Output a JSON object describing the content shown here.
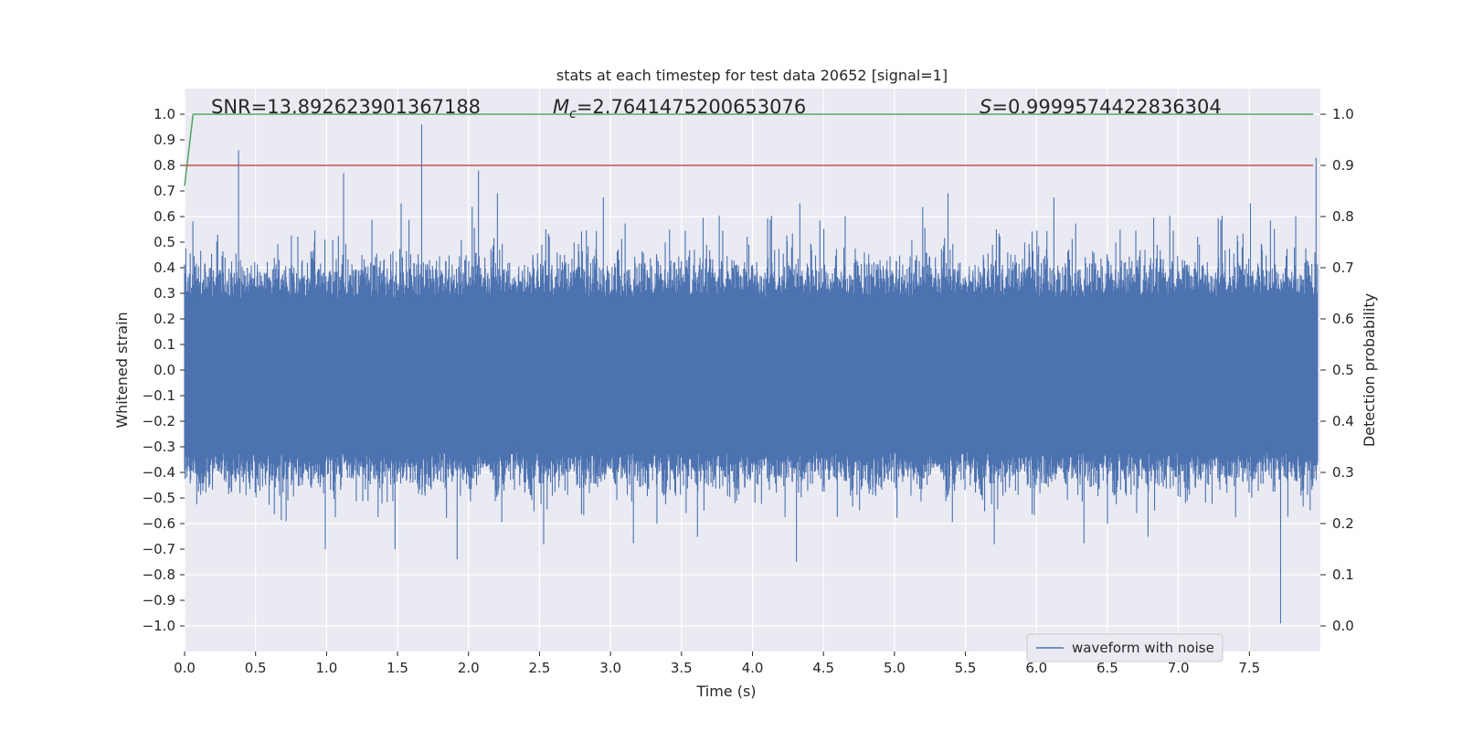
{
  "chart_data": {
    "type": "line",
    "title": "stats at each timestep for test data 20652 [signal=1]",
    "xlabel": "Time (s)",
    "ylabel": "Whitened strain",
    "ylabel_right": "Detection probability",
    "xlim": [
      0.0,
      8.0
    ],
    "ylim": [
      -1.1,
      1.1
    ],
    "ylim_right": [
      -0.05,
      1.05
    ],
    "x_ticks": [
      "0.0",
      "0.5",
      "1.0",
      "1.5",
      "2.0",
      "2.5",
      "3.0",
      "3.5",
      "4.0",
      "4.5",
      "5.0",
      "5.5",
      "6.0",
      "6.5",
      "7.0",
      "7.5"
    ],
    "y_ticks": [
      "1.0",
      "0.9",
      "0.8",
      "0.7",
      "0.6",
      "0.5",
      "0.4",
      "0.3",
      "0.2",
      "0.1",
      "0.0",
      "−0.1",
      "−0.2",
      "−0.3",
      "−0.4",
      "−0.5",
      "−0.6",
      "−0.7",
      "−0.8",
      "−0.9",
      "−1.0"
    ],
    "y_right_ticks": [
      "1.0",
      "0.9",
      "0.8",
      "0.7",
      "0.6",
      "0.5",
      "0.4",
      "0.3",
      "0.2",
      "0.1",
      "0.0"
    ],
    "grid": true,
    "legend_position": "lower-right",
    "annotations": {
      "snr": "SNR=13.892623901367188",
      "mc_symbol": "M",
      "mc_subscript": "c",
      "mc_value": "=2.7641475200653076",
      "s_symbol": "S",
      "s_value": "=0.9999574422836304"
    },
    "series": [
      {
        "name": "waveform with noise",
        "axis": "left",
        "color": "#4c72b0",
        "style": "noise trace spanning roughly ±0.5, peaks near ±0.9",
        "x_range": [
          0.0,
          7.98
        ],
        "envelope": [
          0.62,
          -0.45
        ],
        "notable_peaks": [
          {
            "x": 0.38,
            "y": 0.86
          },
          {
            "x": 1.67,
            "y": 0.96
          },
          {
            "x": 1.12,
            "y": 0.77
          },
          {
            "x": 2.07,
            "y": 0.78
          },
          {
            "x": 1.92,
            "y": -0.74
          },
          {
            "x": 4.31,
            "y": -0.75
          },
          {
            "x": 7.72,
            "y": -0.99
          },
          {
            "x": 7.97,
            "y": 0.83
          }
        ]
      },
      {
        "axis": "right",
        "color": "#55a868",
        "x": [
          0.0,
          0.06,
          7.95
        ],
        "values": [
          0.86,
          1.0,
          1.0
        ]
      },
      {
        "axis": "right",
        "color": "#c44e52",
        "x": [
          0.0,
          7.95
        ],
        "values": [
          0.9,
          0.9
        ]
      }
    ],
    "colors": {
      "background": "#eaeaf2",
      "grid": "#ffffff",
      "waveform": "#4c72b0",
      "probability": "#55a868",
      "threshold": "#c44e52"
    }
  }
}
